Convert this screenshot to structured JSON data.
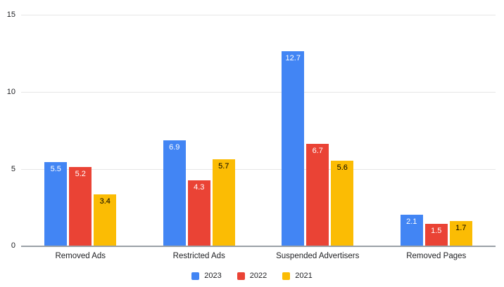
{
  "chart_data": {
    "type": "bar",
    "title": "",
    "xlabel": "",
    "ylabel": "",
    "categories": [
      "Removed Ads",
      "Restricted Ads",
      "Suspended Advertisers",
      "Removed Pages"
    ],
    "series": [
      {
        "name": "2023",
        "color": "#4285F4",
        "label_color": "#ffffff",
        "values": [
          5.5,
          6.9,
          12.7,
          2.1
        ]
      },
      {
        "name": "2022",
        "color": "#EA4335",
        "label_color": "#ffffff",
        "values": [
          5.2,
          4.3,
          6.7,
          1.5
        ]
      },
      {
        "name": "2021",
        "color": "#FBBC04",
        "label_color": "#000000",
        "values": [
          3.4,
          5.7,
          5.6,
          1.7
        ]
      }
    ],
    "ylim": [
      0,
      15
    ],
    "yticks": [
      0,
      5,
      10,
      15
    ],
    "grid": true,
    "gridline_color": "#e6e6e6",
    "axis_line_color": "#9aa0a6",
    "background_color": "#ffffff",
    "legend_position": "bottom",
    "value_labels_shown": true
  }
}
